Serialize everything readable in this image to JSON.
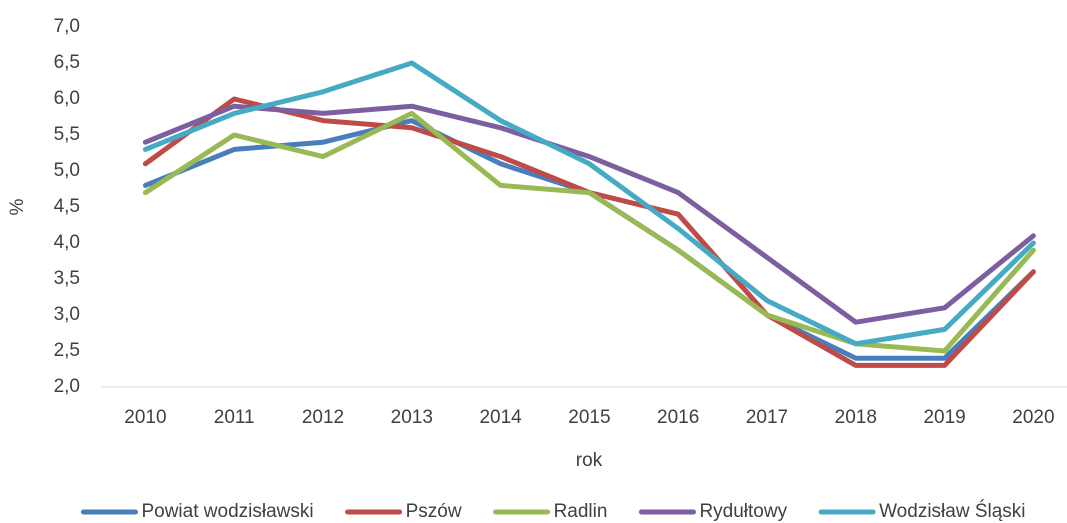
{
  "chart_data": {
    "type": "line",
    "xlabel": "rok",
    "ylabel": "%",
    "categories": [
      "2010",
      "2011",
      "2012",
      "2013",
      "2014",
      "2015",
      "2016",
      "2017",
      "2018",
      "2019",
      "2020"
    ],
    "series": [
      {
        "name": "Powiat wodzisławski",
        "color": "#4a7ebb",
        "values": [
          4.8,
          5.3,
          5.4,
          5.7,
          5.1,
          4.7,
          3.9,
          3.0,
          2.4,
          2.4,
          3.6
        ]
      },
      {
        "name": "Pszów",
        "color": "#be4b48",
        "values": [
          5.1,
          6.0,
          5.7,
          5.6,
          5.2,
          4.7,
          4.4,
          3.0,
          2.3,
          2.3,
          3.6
        ]
      },
      {
        "name": "Radlin",
        "color": "#98b954",
        "values": [
          4.7,
          5.5,
          5.2,
          5.8,
          4.8,
          4.7,
          3.9,
          3.0,
          2.6,
          2.5,
          3.9
        ]
      },
      {
        "name": "Rydułtowy",
        "color": "#7d5fa0",
        "values": [
          5.4,
          5.9,
          5.8,
          5.9,
          5.6,
          5.2,
          4.7,
          3.8,
          2.9,
          3.1,
          4.1
        ]
      },
      {
        "name": "Wodzisław Śląski",
        "color": "#46aac5",
        "values": [
          5.3,
          5.8,
          6.1,
          6.5,
          5.7,
          5.1,
          4.2,
          3.2,
          2.6,
          2.8,
          4.0
        ]
      }
    ],
    "ylim": [
      2.0,
      7.0
    ],
    "yticks": [
      {
        "value": 2.0,
        "label": "2,0"
      },
      {
        "value": 2.5,
        "label": "2,5"
      },
      {
        "value": 3.0,
        "label": "3,0"
      },
      {
        "value": 3.5,
        "label": "3,5"
      },
      {
        "value": 4.0,
        "label": "4,0"
      },
      {
        "value": 4.5,
        "label": "4,5"
      },
      {
        "value": 5.0,
        "label": "5,0"
      },
      {
        "value": 5.5,
        "label": "5,5"
      },
      {
        "value": 6.0,
        "label": "6,0"
      },
      {
        "value": 6.5,
        "label": "6,5"
      },
      {
        "value": 7.0,
        "label": "7,0"
      }
    ],
    "grid": false,
    "legend": "bottom"
  }
}
